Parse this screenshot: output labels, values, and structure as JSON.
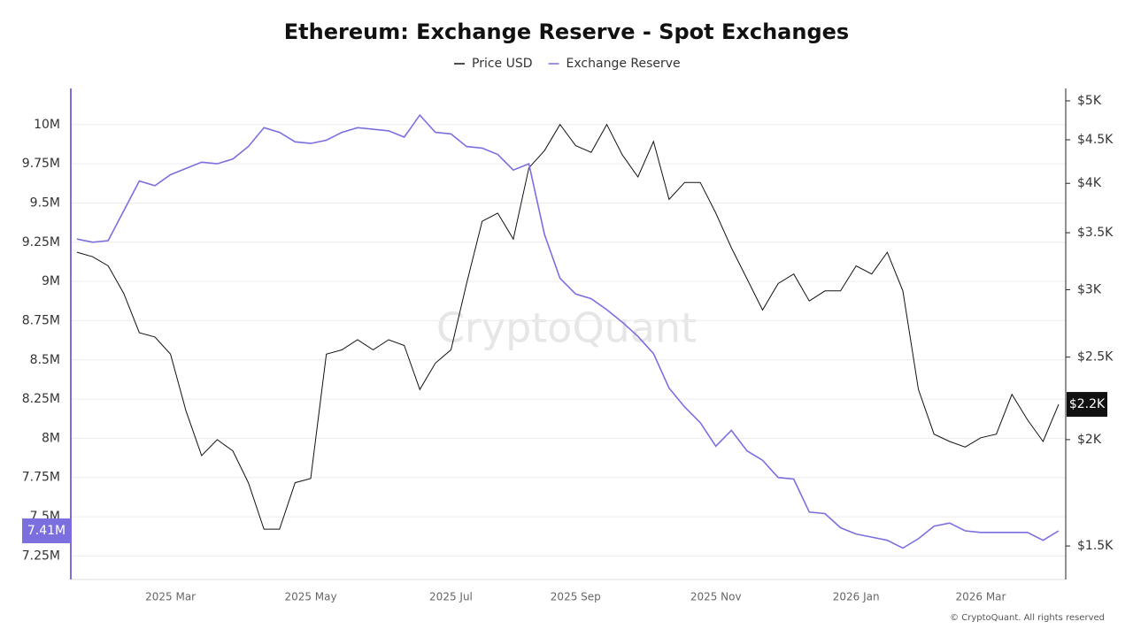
{
  "chart_data": {
    "type": "line",
    "title": "Ethereum: Exchange Reserve - Spot Exchanges",
    "watermark": "CryptoQuant",
    "copyright": "© CryptoQuant. All rights reserved",
    "categories": [
      null,
      null,
      null,
      null,
      null,
      null,
      "2025 Mar",
      null,
      null,
      null,
      null,
      null,
      null,
      null,
      null,
      "2025 May",
      null,
      null,
      null,
      null,
      null,
      null,
      null,
      null,
      "2025 Jul",
      null,
      null,
      null,
      null,
      null,
      null,
      null,
      "2025 Sep",
      null,
      null,
      null,
      null,
      null,
      null,
      null,
      null,
      "2025 Nov",
      null,
      null,
      null,
      null,
      null,
      null,
      null,
      null,
      "2026 Jan",
      null,
      null,
      null,
      null,
      null,
      null,
      null,
      "2026 Mar",
      null,
      null,
      null,
      null,
      null
    ],
    "series": [
      {
        "name": "Price USD",
        "color": "#111111",
        "axis": "y2",
        "last_label": "$2.2K",
        "values": [
          3320,
          3280,
          3200,
          2970,
          2670,
          2640,
          2520,
          2160,
          1915,
          2000,
          1940,
          1780,
          1570,
          1570,
          1780,
          1800,
          2520,
          2550,
          2620,
          2550,
          2620,
          2580,
          2290,
          2460,
          2550,
          3050,
          3610,
          3690,
          3440,
          4170,
          4370,
          4690,
          4430,
          4350,
          4690,
          4320,
          4070,
          4480,
          3830,
          4010,
          4010,
          3690,
          3360,
          3090,
          2840,
          3050,
          3130,
          2910,
          2990,
          2990,
          3200,
          3130,
          3320,
          2990,
          2290,
          2030,
          1990,
          1960,
          2010,
          2030,
          2260,
          2110,
          1990,
          2200
        ]
      },
      {
        "name": "Exchange Reserve",
        "color": "#7b6fe0",
        "last_label": "7.41M",
        "values": [
          9270000,
          9250000,
          9260000,
          9450000,
          9640000,
          9610000,
          9680000,
          9720000,
          9760000,
          9750000,
          9780000,
          9860000,
          9980000,
          9950000,
          9890000,
          9880000,
          9900000,
          9950000,
          9980000,
          9970000,
          9960000,
          9920000,
          10060000,
          9950000,
          9940000,
          9860000,
          9850000,
          9810000,
          9710000,
          9750000,
          9300000,
          9020000,
          8920000,
          8890000,
          8820000,
          8740000,
          8650000,
          8540000,
          8320000,
          8200000,
          8100000,
          7950000,
          8050000,
          7920000,
          7860000,
          7750000,
          7740000,
          7530000,
          7520000,
          7430000,
          7390000,
          7370000,
          7350000,
          7300000,
          7360000,
          7440000,
          7460000,
          7410000,
          7400000,
          7400000,
          7400000,
          7400000,
          7350000,
          7410000
        ]
      }
    ],
    "ylim": [
      7100000,
      10230000
    ],
    "yticks": [
      {
        "value": 10000000,
        "label": "10M"
      },
      {
        "value": 9750000,
        "label": "9.75M"
      },
      {
        "value": 9500000,
        "label": "9.5M"
      },
      {
        "value": 9250000,
        "label": "9.25M"
      },
      {
        "value": 9000000,
        "label": "9M"
      },
      {
        "value": 8750000,
        "label": "8.75M"
      },
      {
        "value": 8500000,
        "label": "8.5M"
      },
      {
        "value": 8250000,
        "label": "8.25M"
      },
      {
        "value": 8000000,
        "label": "8M"
      },
      {
        "value": 7750000,
        "label": "7.75M"
      },
      {
        "value": 7500000,
        "label": "7.5M"
      },
      {
        "value": 7250000,
        "label": "7.25M"
      }
    ],
    "y2lim": [
      1370,
      5170
    ],
    "y2scale": "log",
    "y2ticks": [
      {
        "value": 5000,
        "label": "$5K"
      },
      {
        "value": 4500,
        "label": "$4.5K"
      },
      {
        "value": 4000,
        "label": "$4K"
      },
      {
        "value": 3500,
        "label": "$3.5K"
      },
      {
        "value": 3000,
        "label": "$3K"
      },
      {
        "value": 2500,
        "label": "$2.5K"
      },
      {
        "value": 2000,
        "label": "$2K"
      },
      {
        "value": 1500,
        "label": "$1.5K"
      }
    ],
    "grid": true
  }
}
